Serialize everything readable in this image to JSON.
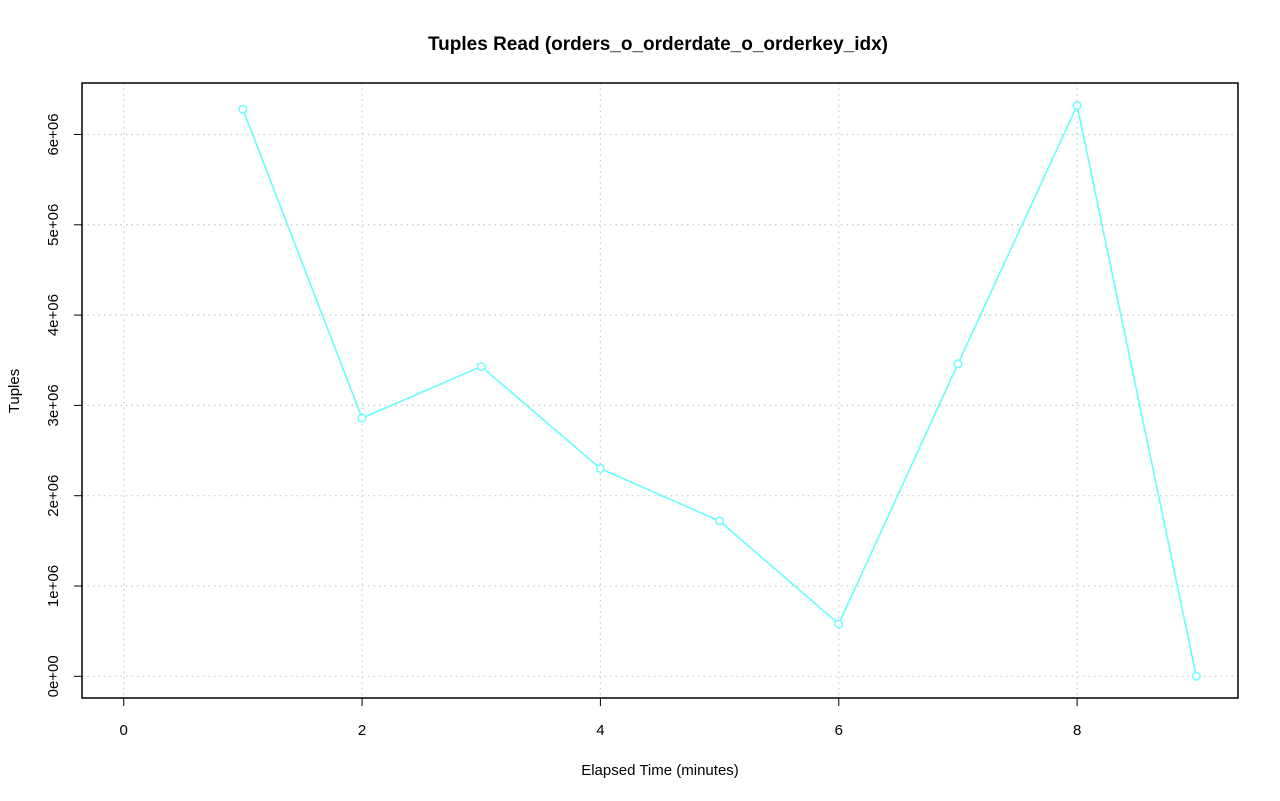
{
  "chart_data": {
    "type": "line",
    "title": "Tuples Read (orders_o_orderdate_o_orderkey_idx)",
    "xlabel": "Elapsed Time (minutes)",
    "ylabel": "Tuples",
    "xlim": [
      -0.35,
      9.35
    ],
    "ylim": [
      -240000,
      6570000
    ],
    "x_ticks": [
      0,
      2,
      4,
      6,
      8
    ],
    "x_tick_labels": [
      "0",
      "2",
      "4",
      "6",
      "8"
    ],
    "y_ticks": [
      0,
      1000000,
      2000000,
      3000000,
      4000000,
      5000000,
      6000000
    ],
    "y_tick_labels": [
      "0e+00",
      "1e+06",
      "2e+06",
      "3e+06",
      "4e+06",
      "5e+06",
      "6e+06"
    ],
    "grid": true,
    "legend": "none",
    "series": [
      {
        "color": "#66ffff",
        "marker": "open-circle",
        "x": [
          1,
          2,
          3,
          4,
          5,
          6,
          7,
          8,
          9
        ],
        "values": [
          6280000,
          2860000,
          3430000,
          2300000,
          1720000,
          580000,
          3460000,
          6320000,
          0
        ]
      }
    ]
  }
}
